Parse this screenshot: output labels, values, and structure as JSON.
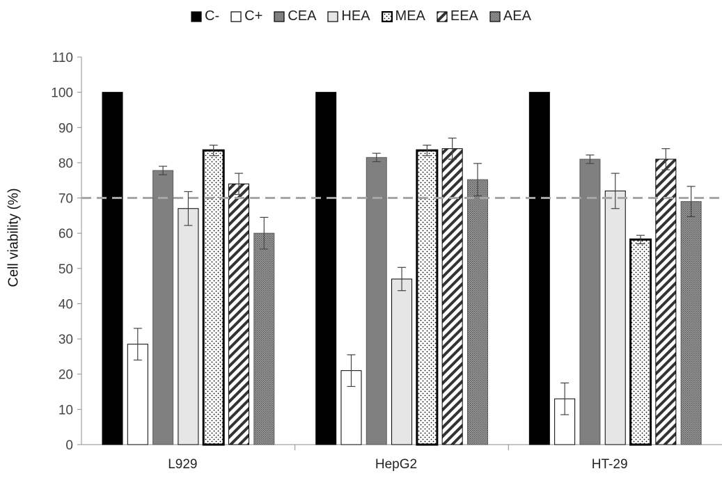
{
  "chart_data": {
    "type": "bar",
    "title": "",
    "xlabel": "",
    "ylabel": "Cell viability (%)",
    "ylim": [
      0,
      110
    ],
    "yticks": [
      0,
      10,
      20,
      30,
      40,
      50,
      60,
      70,
      80,
      90,
      100,
      110
    ],
    "grid": false,
    "legend_position": "top-center",
    "threshold_line": {
      "value": 70,
      "style": "dashed",
      "color": "#a6a6a6"
    },
    "categories": [
      "L929",
      "HepG2",
      "HT-29"
    ],
    "series": [
      {
        "name": "C-",
        "pattern": "solid-black",
        "values": [
          100,
          100,
          100
        ],
        "errors": [
          0,
          0,
          0
        ]
      },
      {
        "name": "C+",
        "pattern": "white",
        "values": [
          28.5,
          21,
          13
        ],
        "errors": [
          4.5,
          4.5,
          4.5
        ]
      },
      {
        "name": "CEA",
        "pattern": "dark-gray",
        "values": [
          77.8,
          81.5,
          81
        ],
        "errors": [
          1.2,
          1.2,
          1.2
        ]
      },
      {
        "name": "HEA",
        "pattern": "light-gray",
        "values": [
          67,
          47,
          72
        ],
        "errors": [
          4.8,
          3.3,
          5
        ]
      },
      {
        "name": "MEA",
        "pattern": "dots",
        "values": [
          83.5,
          83.5,
          58.2
        ],
        "errors": [
          1.5,
          1.5,
          1.2
        ]
      },
      {
        "name": "EEA",
        "pattern": "diagonal",
        "values": [
          74,
          84,
          81
        ],
        "errors": [
          3,
          3,
          3
        ]
      },
      {
        "name": "AEA",
        "pattern": "crosshatch",
        "values": [
          60,
          75.2,
          69
        ],
        "errors": [
          4.5,
          4.6,
          4.3
        ]
      }
    ]
  }
}
